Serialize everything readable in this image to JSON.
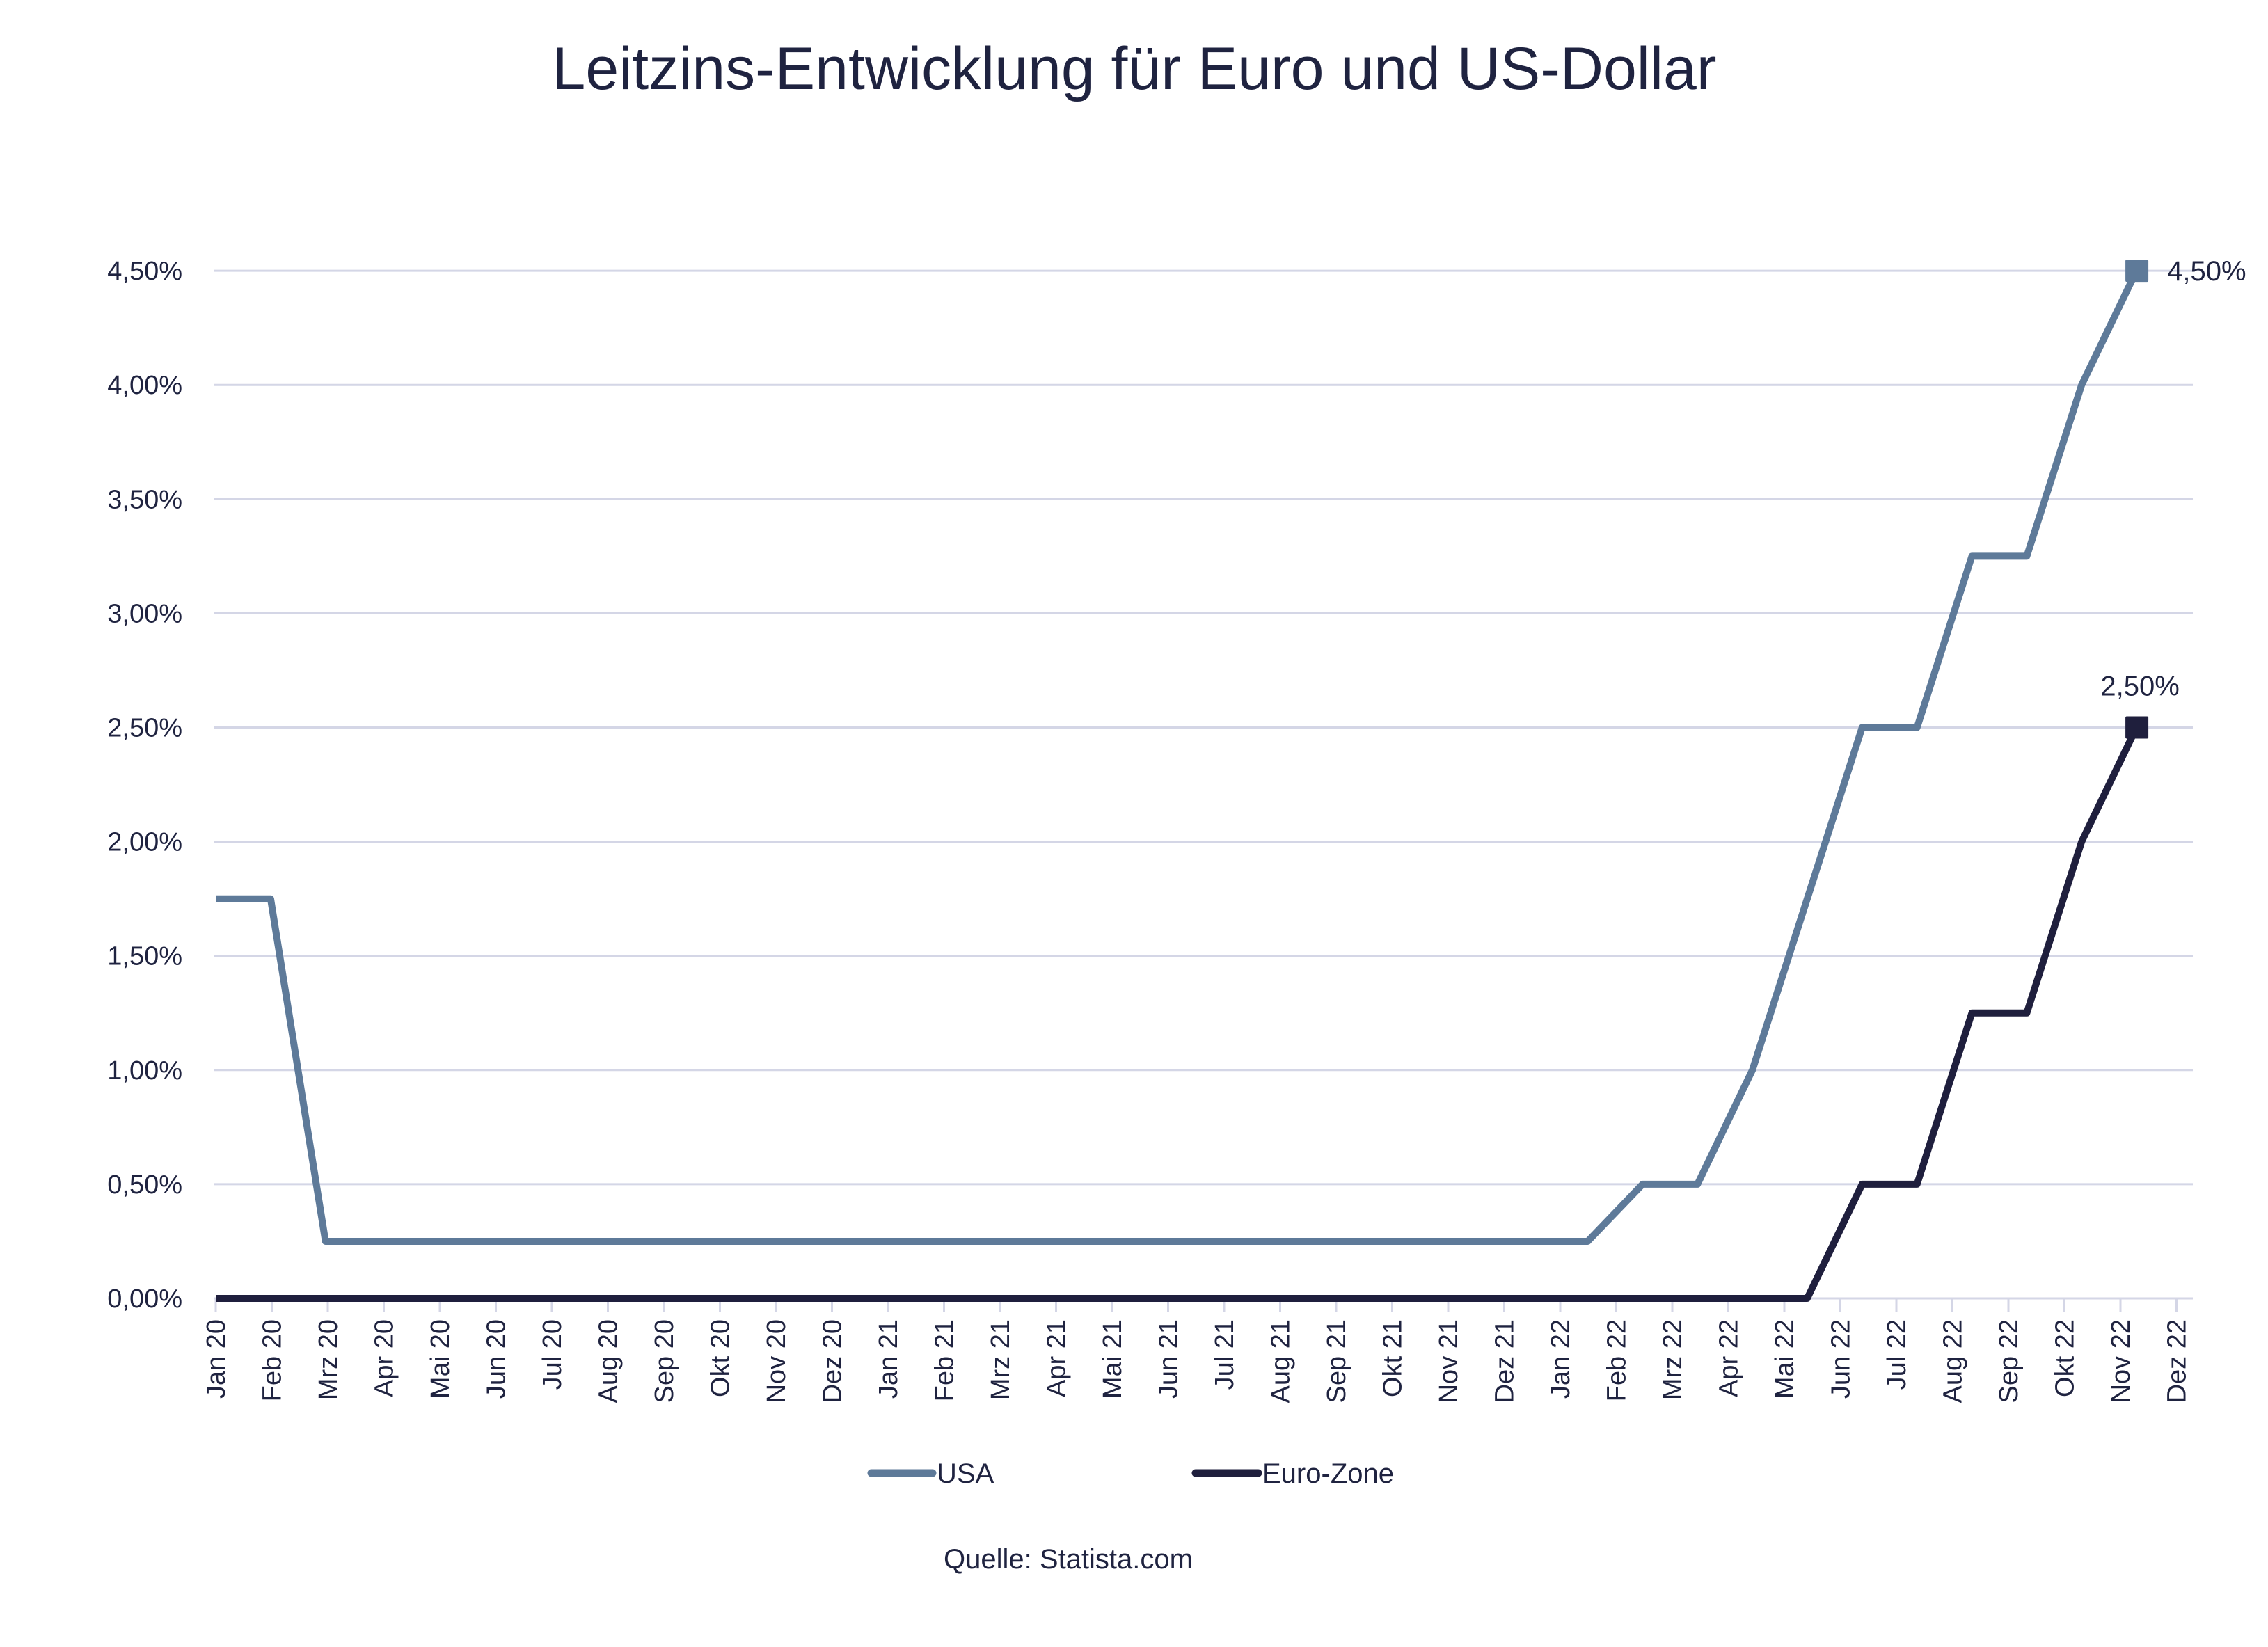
{
  "chart_data": {
    "type": "line",
    "title": "Leitzins-Entwicklung für Euro und US-Dollar",
    "xlabel": "",
    "ylabel": "",
    "ylim": [
      0,
      4.5
    ],
    "y_ticks": [
      "0,00%",
      "0,50%",
      "1,00%",
      "1,50%",
      "2,00%",
      "2,50%",
      "3,00%",
      "3,50%",
      "4,00%",
      "4,50%"
    ],
    "y_tick_values": [
      0,
      0.5,
      1.0,
      1.5,
      2.0,
      2.5,
      3.0,
      3.5,
      4.0,
      4.5
    ],
    "categories": [
      "Jan 20",
      "Feb 20",
      "Mrz 20",
      "Apr 20",
      "Mai 20",
      "Jun 20",
      "Jul 20",
      "Aug 20",
      "Sep 20",
      "Okt 20",
      "Nov 20",
      "Dez 20",
      "Jan 21",
      "Feb 21",
      "Mrz 21",
      "Apr 21",
      "Mai 21",
      "Jun 21",
      "Jul 21",
      "Aug 21",
      "Sep 21",
      "Okt 21",
      "Nov 21",
      "Dez 21",
      "Jan 22",
      "Feb 22",
      "Mrz 22",
      "Apr 22",
      "Mai 22",
      "Jun 22",
      "Jul 22",
      "Aug 22",
      "Sep 22",
      "Okt 22",
      "Nov 22",
      "Dez 22"
    ],
    "grid": true,
    "legend_position": "bottom",
    "series": [
      {
        "name": "USA",
        "color": "#5e7a99",
        "values": [
          1.75,
          1.75,
          0.25,
          0.25,
          0.25,
          0.25,
          0.25,
          0.25,
          0.25,
          0.25,
          0.25,
          0.25,
          0.25,
          0.25,
          0.25,
          0.25,
          0.25,
          0.25,
          0.25,
          0.25,
          0.25,
          0.25,
          0.25,
          0.25,
          0.25,
          0.25,
          0.5,
          0.5,
          1.0,
          1.75,
          2.5,
          2.5,
          3.25,
          3.25,
          4.0,
          4.5
        ],
        "end_label": "4,50%"
      },
      {
        "name": "Euro-Zone",
        "color": "#1f1f3d",
        "values": [
          0,
          0,
          0,
          0,
          0,
          0,
          0,
          0,
          0,
          0,
          0,
          0,
          0,
          0,
          0,
          0,
          0,
          0,
          0,
          0,
          0,
          0,
          0,
          0,
          0,
          0,
          0,
          0,
          0,
          0,
          0.5,
          0.5,
          1.25,
          1.25,
          2.0,
          2.5
        ],
        "end_label": "2,50%"
      }
    ],
    "source": "Quelle: Statista.com"
  },
  "colors": {
    "text": "#1f2340",
    "grid": "#d4d6e6",
    "usa": "#5e7a99",
    "euro": "#1f1f3d",
    "background": "#ffffff"
  }
}
